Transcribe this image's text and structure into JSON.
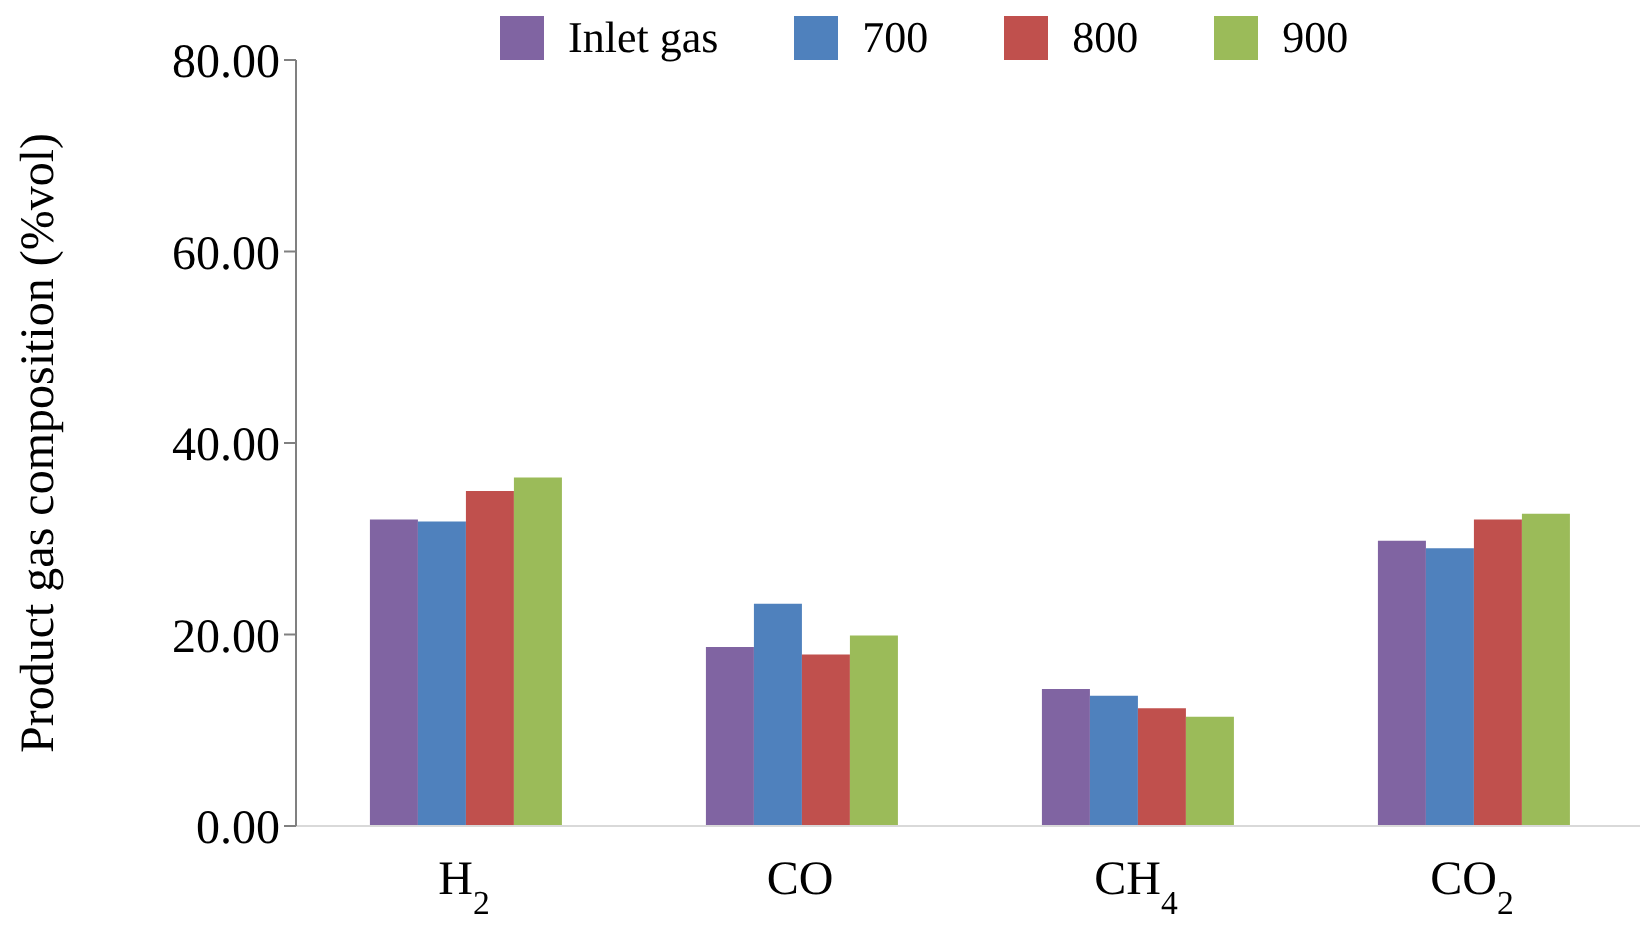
{
  "chart_data": {
    "type": "bar",
    "ylabel": "Product gas composition (%vol)",
    "categories": [
      "H$_{2}$",
      "CO",
      "CH$_{4}$",
      "CO$_{2}$"
    ],
    "series": [
      {
        "name": "Inlet gas",
        "color": "#8064a2",
        "values": [
          32.0,
          18.7,
          14.3,
          29.8
        ]
      },
      {
        "name": "700",
        "color": "#4f81bd",
        "values": [
          31.8,
          23.2,
          13.6,
          29.0
        ]
      },
      {
        "name": "800",
        "color": "#c0504d",
        "values": [
          35.0,
          17.9,
          12.3,
          32.0
        ]
      },
      {
        "name": "900",
        "color": "#9bbb59",
        "values": [
          36.4,
          19.9,
          11.4,
          32.6
        ]
      }
    ],
    "ylim": [
      0,
      80
    ],
    "yticks": [
      {
        "value": 0,
        "label": "0.00"
      },
      {
        "value": 20,
        "label": "20.00"
      },
      {
        "value": 40,
        "label": "40.00"
      },
      {
        "value": 60,
        "label": "60.00"
      },
      {
        "value": 80,
        "label": "80.00"
      }
    ],
    "grid": false,
    "legend": "top"
  }
}
